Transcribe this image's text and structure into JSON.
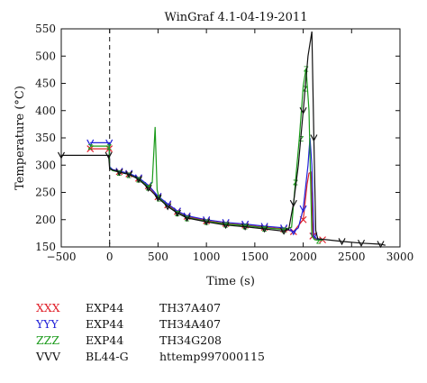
{
  "chart_data": {
    "type": "line",
    "title": "WinGraf 4.1-04-19-2011",
    "xlabel": "Time (s)",
    "ylabel": "Temperature (°C)",
    "xlim": [
      -500,
      3000
    ],
    "ylim": [
      150,
      550
    ],
    "xticks": [
      -500,
      0,
      500,
      1000,
      1500,
      2000,
      2500,
      3000
    ],
    "yticks": [
      150,
      200,
      250,
      300,
      350,
      400,
      450,
      500,
      550
    ],
    "vline_x": 0,
    "grid": false,
    "series": [
      {
        "name": "XXX",
        "exp": "EXP44",
        "tag": "TH37A407",
        "color": "#e0202a",
        "marker": "x",
        "x": [
          -200,
          -5,
          0,
          30,
          100,
          200,
          300,
          400,
          500,
          600,
          700,
          800,
          1000,
          1200,
          1400,
          1600,
          1800,
          1900,
          2000,
          2040,
          2060,
          2080,
          2100,
          2140,
          2200
        ],
        "y": [
          330,
          330,
          296,
          291,
          288,
          284,
          276,
          262,
          242,
          227,
          215,
          206,
          198,
          193,
          190,
          186,
          183,
          178,
          200,
          265,
          285,
          287,
          170,
          163,
          163
        ]
      },
      {
        "name": "YYY",
        "exp": "EXP44",
        "tag": "TH34A407",
        "color": "#2222d8",
        "marker": "v",
        "x": [
          -200,
          -5,
          0,
          30,
          100,
          200,
          300,
          400,
          500,
          600,
          700,
          800,
          1000,
          1200,
          1400,
          1600,
          1800,
          1900,
          1950,
          2000,
          2050,
          2070,
          2090,
          2110,
          2150,
          2200
        ],
        "y": [
          341,
          341,
          297,
          292,
          289,
          285,
          277,
          263,
          243,
          229,
          216,
          207,
          200,
          195,
          192,
          188,
          185,
          178,
          185,
          220,
          300,
          350,
          300,
          170,
          163,
          163
        ]
      },
      {
        "name": "ZZZ",
        "exp": "EXP44",
        "tag": "TH34G208",
        "color": "#1a9a1a",
        "marker": "z",
        "x": [
          -200,
          -5,
          0,
          30,
          100,
          200,
          300,
          400,
          440,
          470,
          490,
          510,
          600,
          700,
          800,
          1000,
          1200,
          1400,
          1600,
          1800,
          1880,
          1920,
          1960,
          2000,
          2030,
          2060,
          2090,
          2120,
          2160,
          2200
        ],
        "y": [
          335,
          335,
          295,
          290,
          287,
          283,
          275,
          260,
          268,
          370,
          255,
          240,
          225,
          213,
          204,
          197,
          192,
          189,
          185,
          182,
          186,
          270,
          350,
          445,
          478,
          400,
          170,
          163,
          162,
          162
        ],
        "label_points": [
          [
            1920,
            270
          ],
          [
            1980,
            350
          ],
          [
            2020,
            442
          ]
        ]
      },
      {
        "name": "VVV",
        "exp": "BL44-G",
        "tag": "httemp997000115",
        "color": "#111111",
        "marker": "v",
        "x": [
          -500,
          -10,
          0,
          50,
          100,
          200,
          300,
          400,
          500,
          600,
          700,
          800,
          1000,
          1200,
          1400,
          1600,
          1800,
          1850,
          1900,
          1950,
          2000,
          2050,
          2090,
          2110,
          2130,
          2150,
          2200,
          2400,
          2600,
          2800,
          2850
        ],
        "y": [
          318,
          318,
          293,
          290,
          287,
          283,
          274,
          258,
          240,
          224,
          212,
          203,
          196,
          190,
          187,
          183,
          179,
          182,
          230,
          300,
          400,
          500,
          545,
          350,
          180,
          165,
          164,
          160,
          157,
          155,
          153
        ]
      }
    ],
    "legend_position": "bottom"
  }
}
